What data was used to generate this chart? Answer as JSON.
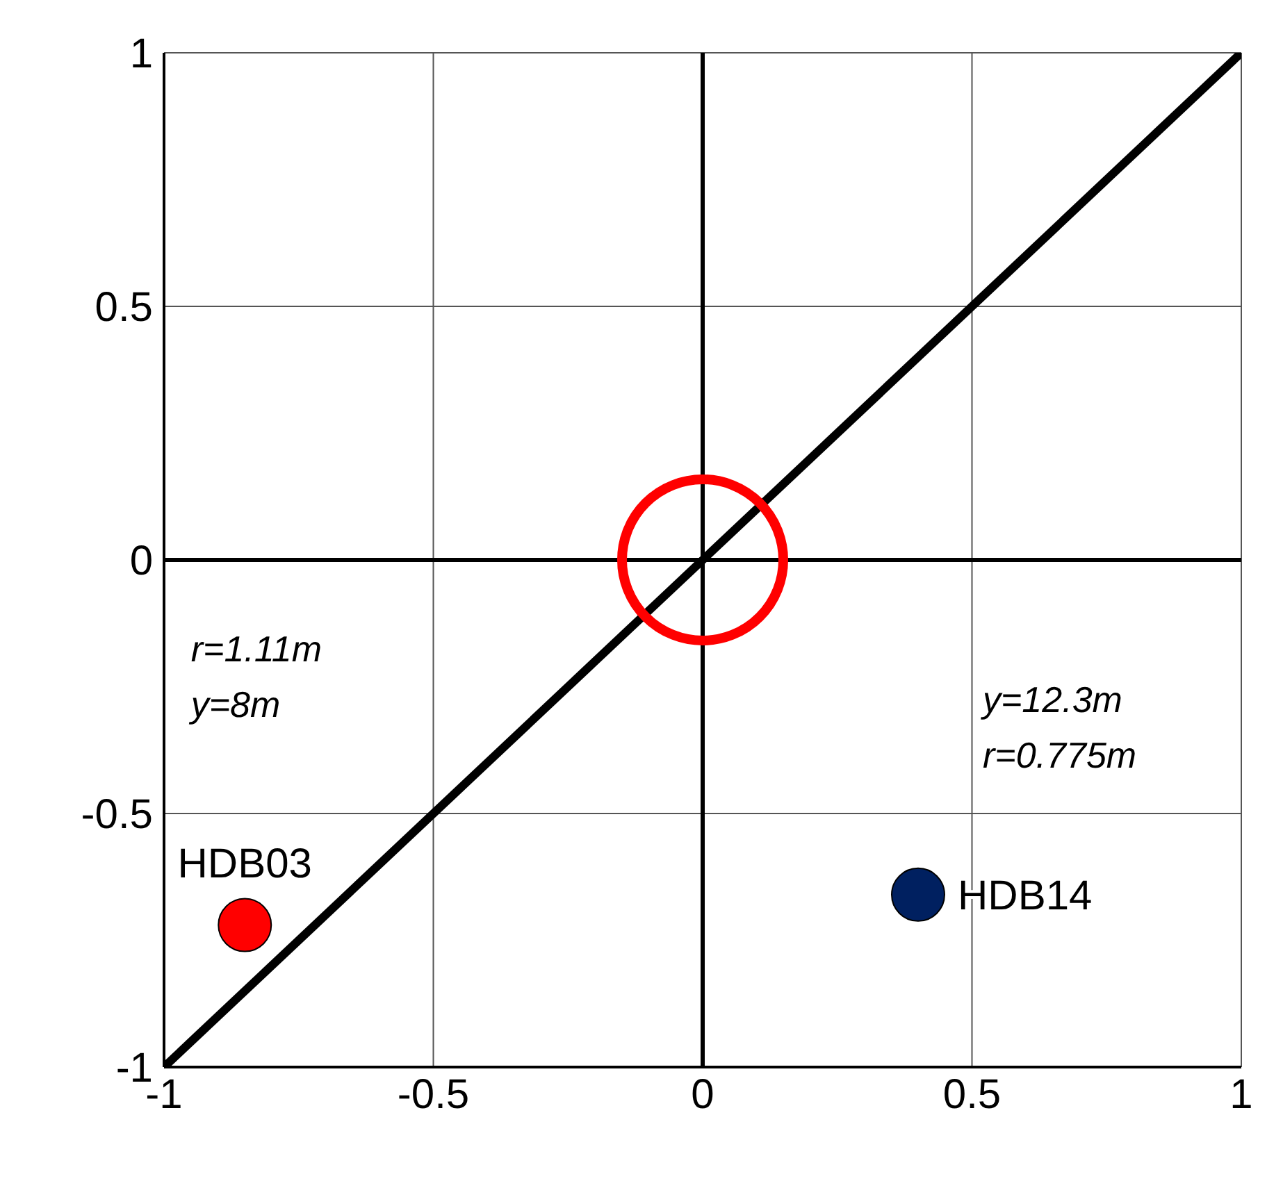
{
  "chart_data": {
    "type": "scatter",
    "xlim": [
      -1,
      1
    ],
    "ylim": [
      -1,
      1
    ],
    "xticks": [
      -1,
      -0.5,
      0,
      0.5,
      1
    ],
    "yticks": [
      -1,
      -0.5,
      0,
      0.5,
      1
    ],
    "grid": true,
    "legend": false,
    "marker": "circle",
    "series": [
      {
        "name": "HDB03",
        "color": "#ff0000",
        "x": [
          -0.85
        ],
        "values": [
          -0.72
        ]
      },
      {
        "name": "HDB14",
        "color": "#002060",
        "x": [
          0.4
        ],
        "values": [
          -0.66
        ]
      },
      {
        "type": "line",
        "marker": "none",
        "color": "#000000",
        "x": [
          -1,
          1
        ],
        "values": [
          -1,
          1
        ]
      }
    ],
    "annotations": [
      "r=1.11m\ny=8m",
      "y=12.3m\nr=0.775m"
    ]
  }
}
